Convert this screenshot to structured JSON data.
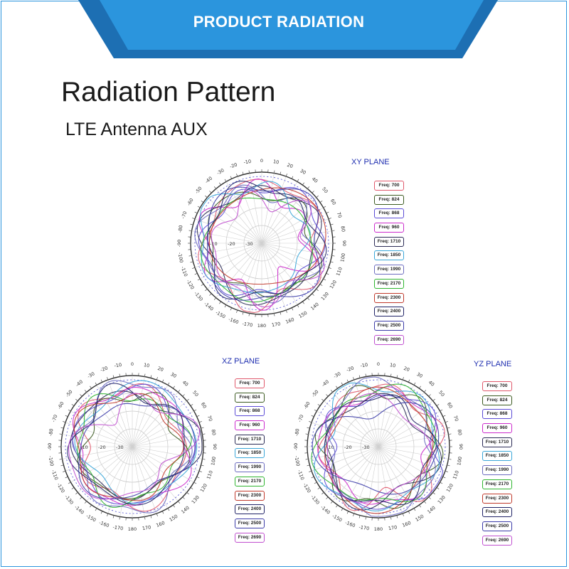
{
  "banner": {
    "title": "PRODUCT RADIATION",
    "color": "#2b95dd",
    "dark_stripe_color": "#1d6fb3"
  },
  "header": {
    "title": "Radiation Pattern",
    "subtitle": "LTE Antenna AUX"
  },
  "series": [
    {
      "name": "Freq: 700",
      "color": "#e0586b"
    },
    {
      "name": "Freq: 824",
      "color": "#3b5a20"
    },
    {
      "name": "Freq: 868",
      "color": "#5b4bd6"
    },
    {
      "name": "Freq: 960",
      "color": "#cc2bcc"
    },
    {
      "name": "Freq: 1710",
      "color": "#2a2a55"
    },
    {
      "name": "Freq: 1850",
      "color": "#3aa6d8"
    },
    {
      "name": "Freq: 1990",
      "color": "#6c6cc0"
    },
    {
      "name": "Freq: 2170",
      "color": "#2fb52f"
    },
    {
      "name": "Freq: 2300",
      "color": "#c0392b"
    },
    {
      "name": "Freq: 2400",
      "color": "#1f2266"
    },
    {
      "name": "Freq: 2500",
      "color": "#3c3ca8"
    },
    {
      "name": "Freq: 2690",
      "color": "#c04fcf"
    }
  ],
  "angle_labels": [
    "0",
    "10",
    "20",
    "30",
    "40",
    "50",
    "60",
    "70",
    "80",
    "90",
    "100",
    "110",
    "120",
    "130",
    "140",
    "150",
    "160",
    "170",
    "180",
    "-170",
    "-160",
    "-150",
    "-140",
    "-130",
    "-120",
    "-110",
    "-100",
    "-90",
    "-80",
    "-70",
    "-60",
    "-50",
    "-40",
    "-30",
    "-20",
    "-10"
  ],
  "radial_labels": [
    "-10",
    "-20",
    "-30"
  ],
  "planes": [
    {
      "label": "XY PLANE",
      "seed": 3
    },
    {
      "label": "XZ PLANE",
      "seed": 11
    },
    {
      "label": "YZ PLANE",
      "seed": 23
    }
  ]
}
